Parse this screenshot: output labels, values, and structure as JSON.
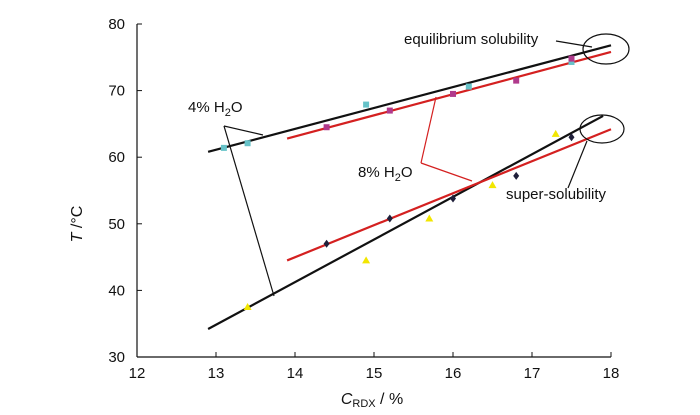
{
  "chart_data": {
    "type": "scatter",
    "xlim": [
      12,
      18
    ],
    "ylim": [
      30,
      80
    ],
    "xticks": [
      "12",
      "13",
      "14",
      "15",
      "16",
      "17",
      "18"
    ],
    "yticks": [
      "30",
      "40",
      "50",
      "60",
      "70",
      "80"
    ],
    "xlabel": {
      "main": "C",
      "sub": "RDX",
      "rest": " / %"
    },
    "ylabel": {
      "main": "T",
      "rest": " /°C"
    },
    "grid": false,
    "series": [
      {
        "label": "4% H2O equilibrium",
        "color": "#111111",
        "marker_color": "#66c2c8",
        "line": [
          [
            12.9,
            60.8
          ],
          [
            18.0,
            76.8
          ]
        ],
        "points": [
          [
            13.1,
            61.4
          ],
          [
            13.4,
            62.1
          ],
          [
            14.9,
            67.9
          ],
          [
            16.2,
            70.6
          ],
          [
            17.5,
            74.3
          ]
        ]
      },
      {
        "label": "8% H2O equilibrium",
        "color": "#d42020",
        "marker_color": "#b03a8c",
        "line": [
          [
            13.9,
            62.8
          ],
          [
            18.0,
            75.8
          ]
        ],
        "points": [
          [
            14.4,
            64.5
          ],
          [
            15.2,
            67.0
          ],
          [
            16.0,
            69.5
          ],
          [
            16.8,
            71.5
          ],
          [
            17.5,
            74.8
          ]
        ]
      },
      {
        "label": "4% H2O super-solubility",
        "color": "#111111",
        "marker_color": "#f2e600",
        "line": [
          [
            12.9,
            34.2
          ],
          [
            17.9,
            66.2
          ]
        ],
        "points": [
          [
            13.4,
            37.5
          ],
          [
            14.9,
            44.5
          ],
          [
            15.7,
            50.8
          ],
          [
            16.5,
            55.8
          ],
          [
            17.3,
            63.5
          ]
        ]
      },
      {
        "label": "8% H2O super-solubility",
        "color": "#d42020",
        "marker_color": "#1f1f3a",
        "line": [
          [
            13.9,
            44.5
          ],
          [
            18.0,
            64.2
          ]
        ],
        "points": [
          [
            14.4,
            47.0
          ],
          [
            15.2,
            50.8
          ],
          [
            16.0,
            53.8
          ],
          [
            16.8,
            57.2
          ],
          [
            17.5,
            63.0
          ]
        ]
      }
    ],
    "annotations": {
      "four_pct": {
        "main": "4% H",
        "sub": "2",
        "rest": "O"
      },
      "eight_pct": {
        "main": "8% H",
        "sub": "2",
        "rest": "O"
      },
      "equilibrium": "equilibrium solubility",
      "super": "super-solubility"
    }
  }
}
